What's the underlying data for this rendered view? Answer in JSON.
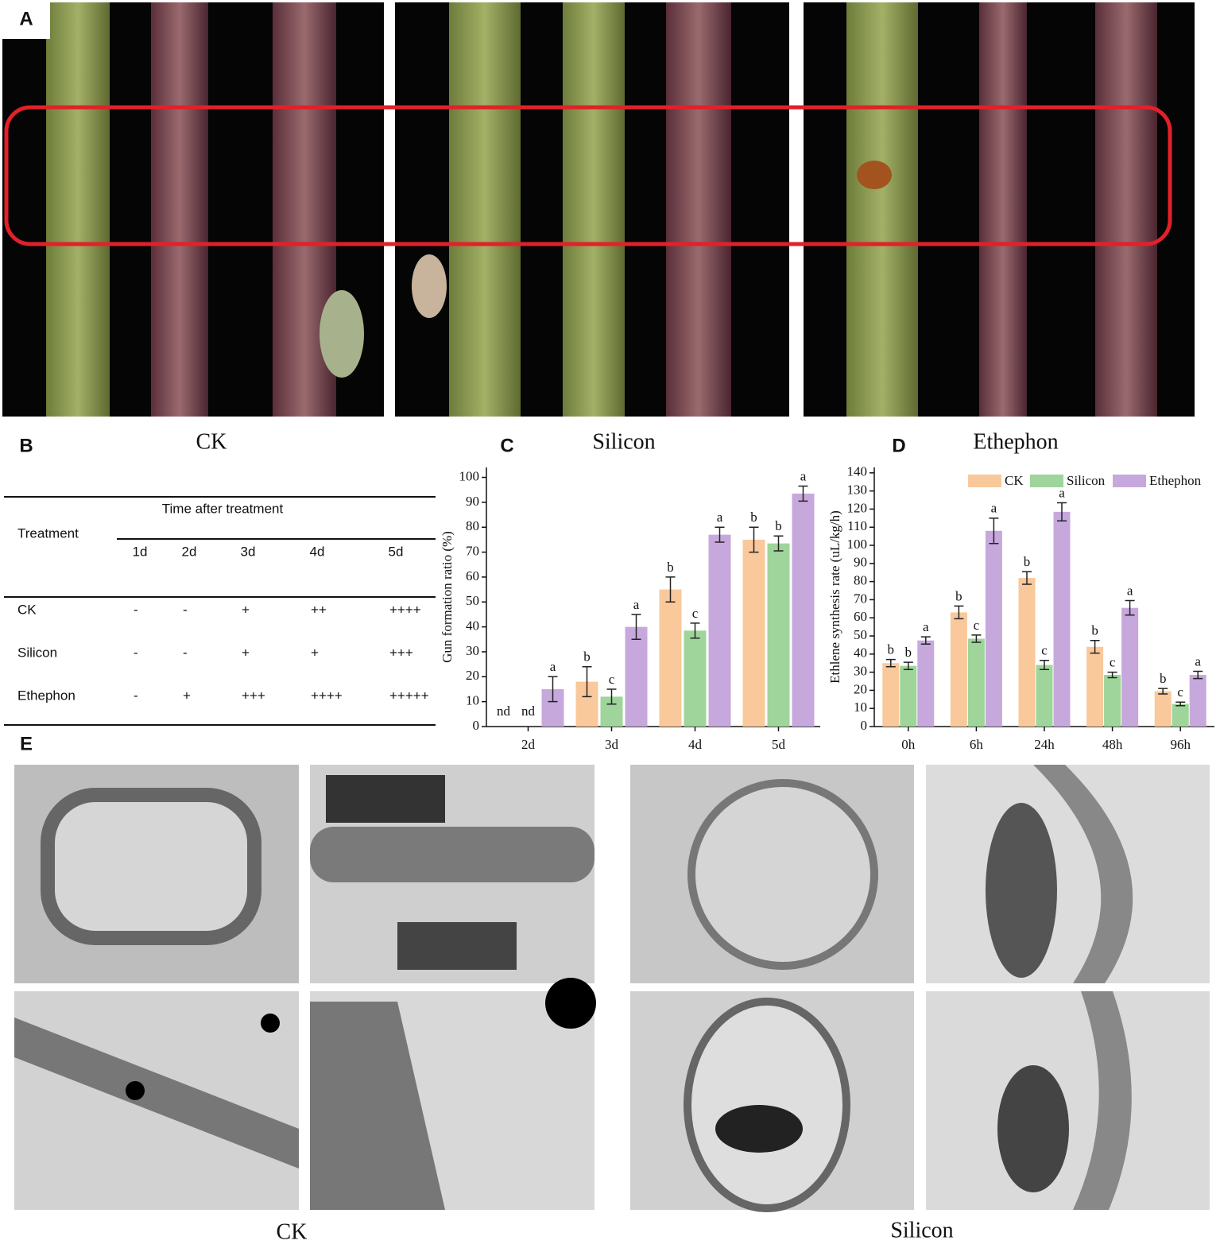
{
  "labels": [
    "A",
    "B",
    "C",
    "D",
    "E"
  ],
  "panel_a": {
    "captions": [
      "CK",
      "Silicon",
      "Ethephon"
    ]
  },
  "table": {
    "header": {
      "treatment": "Treatment",
      "time": "Time after treatment",
      "days": [
        "1d",
        "2d",
        "3d",
        "4d",
        "5d"
      ]
    },
    "rows": [
      [
        "CK",
        "-",
        "-",
        "+",
        "++",
        "++++"
      ],
      [
        "Silicon",
        "-",
        "-",
        "+",
        "+",
        "+++"
      ],
      [
        "Ethephon",
        "-",
        "+",
        "+++",
        "++++",
        "+++++"
      ]
    ]
  },
  "chart_data": [
    {
      "type": "bar",
      "y_label": "Gun formation ratio (%)",
      "categories": [
        "2d",
        "3d",
        "4d",
        "5d"
      ],
      "ylim": [
        0,
        104
      ],
      "yticks": [
        0,
        10,
        20,
        30,
        40,
        50,
        60,
        70,
        80,
        90,
        100
      ],
      "series": [
        {
          "name": "CK",
          "color": "#f9c89b",
          "values": [
            null,
            18,
            55,
            75
          ],
          "errors": [
            null,
            6,
            5,
            5
          ],
          "letters": [
            "nd",
            "b",
            "b",
            "b"
          ]
        },
        {
          "name": "Silicon",
          "color": "#9fd49a",
          "values": [
            null,
            12,
            38.5,
            73.5
          ],
          "errors": [
            null,
            3,
            3,
            3
          ],
          "letters": [
            "nd",
            "c",
            "c",
            "b"
          ]
        },
        {
          "name": "Ethephon",
          "color": "#c6a8dd",
          "values": [
            15,
            40,
            77,
            93.5
          ],
          "errors": [
            5,
            5,
            3,
            3
          ],
          "letters": [
            "a",
            "a",
            "a",
            "a"
          ]
        }
      ]
    },
    {
      "type": "bar",
      "y_label": "Ethlene synthesis rate (uL/kg/h)",
      "categories": [
        "0h",
        "6h",
        "24h",
        "48h",
        "96h"
      ],
      "ylim": [
        0,
        143
      ],
      "yticks": [
        0,
        10,
        20,
        30,
        40,
        50,
        60,
        70,
        80,
        90,
        100,
        110,
        120,
        130,
        140
      ],
      "legend": "top-right",
      "series": [
        {
          "name": "CK",
          "color": "#f9c89b",
          "values": [
            35,
            63,
            82,
            44,
            19.5
          ],
          "errors": [
            2,
            3.5,
            3.5,
            3.5,
            1.5
          ],
          "letters": [
            "b",
            "b",
            "b",
            "b",
            "b"
          ]
        },
        {
          "name": "Silicon",
          "color": "#9fd49a",
          "values": [
            33.5,
            48.5,
            34,
            28.5,
            12.5
          ],
          "errors": [
            2,
            2,
            2.5,
            1.5,
            1
          ],
          "letters": [
            "b",
            "c",
            "c",
            "c",
            "c"
          ]
        },
        {
          "name": "Ethephon",
          "color": "#c6a8dd",
          "values": [
            47.5,
            108,
            118.5,
            65.5,
            28.5
          ],
          "errors": [
            2,
            7,
            5,
            4,
            2
          ],
          "letters": [
            "a",
            "a",
            "a",
            "a",
            "a"
          ]
        }
      ]
    }
  ],
  "panel_e": {
    "captions": [
      "CK",
      "Silicon"
    ]
  }
}
